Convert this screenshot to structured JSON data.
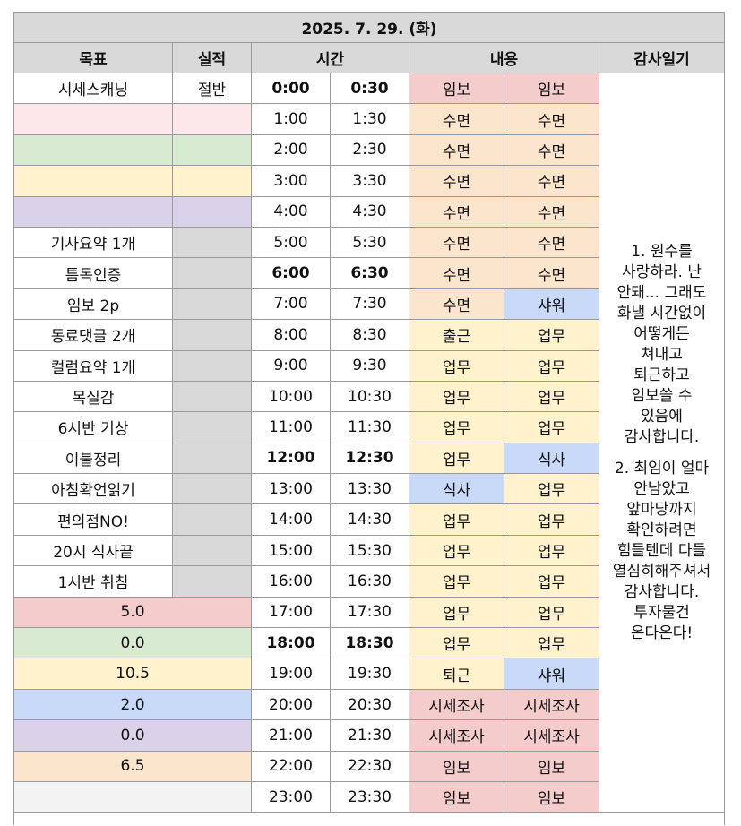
{
  "title": "2025. 7. 29. (화)",
  "headers": {
    "goal": "목표",
    "result": "실적",
    "time": "시간",
    "content": "내용",
    "diary": "감사일기"
  },
  "colors": {
    "red": "#f4cccc",
    "pink": "#fce8ea",
    "green": "#d9ead3",
    "yellow": "#fff2cc",
    "purple": "#d9d2e9",
    "grey": "#d9d9d9",
    "orange": "#fce5cd",
    "blue": "#c9daf8",
    "light": "#f3f3f3",
    "white": "#ffffff",
    "header": "#d9d9d9"
  },
  "rows": [
    {
      "goal": "시세스캐닝",
      "result": "절반",
      "goal_color": "white",
      "result_color": "white",
      "t1": "0:00",
      "t2": "0:30",
      "bold": true,
      "c1": "임보",
      "c1_color": "red",
      "c2": "임보",
      "c2_color": "red"
    },
    {
      "goal": "",
      "result": "",
      "goal_color": "pink",
      "result_color": "pink",
      "t1": "1:00",
      "t2": "1:30",
      "bold": false,
      "c1": "수면",
      "c1_color": "orange",
      "c2": "수면",
      "c2_color": "orange"
    },
    {
      "goal": "",
      "result": "",
      "goal_color": "green",
      "result_color": "green",
      "t1": "2:00",
      "t2": "2:30",
      "bold": false,
      "c1": "수면",
      "c1_color": "orange",
      "c2": "수면",
      "c2_color": "orange"
    },
    {
      "goal": "",
      "result": "",
      "goal_color": "yellow",
      "result_color": "yellow",
      "t1": "3:00",
      "t2": "3:30",
      "bold": false,
      "c1": "수면",
      "c1_color": "orange",
      "c2": "수면",
      "c2_color": "orange"
    },
    {
      "goal": "",
      "result": "",
      "goal_color": "purple",
      "result_color": "purple",
      "t1": "4:00",
      "t2": "4:30",
      "bold": false,
      "c1": "수면",
      "c1_color": "orange",
      "c2": "수면",
      "c2_color": "orange"
    },
    {
      "goal": "기사요약 1개",
      "result": "",
      "goal_color": "white",
      "result_color": "grey",
      "t1": "5:00",
      "t2": "5:30",
      "bold": false,
      "c1": "수면",
      "c1_color": "orange",
      "c2": "수면",
      "c2_color": "orange"
    },
    {
      "goal": "틈독인증",
      "result": "",
      "goal_color": "white",
      "result_color": "grey",
      "t1": "6:00",
      "t2": "6:30",
      "bold": true,
      "c1": "수면",
      "c1_color": "orange",
      "c2": "수면",
      "c2_color": "orange"
    },
    {
      "goal": "임보 2p",
      "result": "",
      "goal_color": "white",
      "result_color": "grey",
      "t1": "7:00",
      "t2": "7:30",
      "bold": false,
      "c1": "수면",
      "c1_color": "orange",
      "c2": "샤워",
      "c2_color": "blue"
    },
    {
      "goal": "동료댓글 2개",
      "result": "",
      "goal_color": "white",
      "result_color": "grey",
      "t1": "8:00",
      "t2": "8:30",
      "bold": false,
      "c1": "출근",
      "c1_color": "yellow",
      "c2": "업무",
      "c2_color": "yellow"
    },
    {
      "goal": "컬럼요약 1개",
      "result": "",
      "goal_color": "white",
      "result_color": "grey",
      "t1": "9:00",
      "t2": "9:30",
      "bold": false,
      "c1": "업무",
      "c1_color": "yellow",
      "c2": "업무",
      "c2_color": "yellow"
    },
    {
      "goal": "목실감",
      "result": "",
      "goal_color": "white",
      "result_color": "grey",
      "t1": "10:00",
      "t2": "10:30",
      "bold": false,
      "c1": "업무",
      "c1_color": "yellow",
      "c2": "업무",
      "c2_color": "yellow"
    },
    {
      "goal": "6시반 기상",
      "result": "",
      "goal_color": "white",
      "result_color": "grey",
      "t1": "11:00",
      "t2": "11:30",
      "bold": false,
      "c1": "업무",
      "c1_color": "yellow",
      "c2": "업무",
      "c2_color": "yellow"
    },
    {
      "goal": "이불정리",
      "result": "",
      "goal_color": "white",
      "result_color": "grey",
      "t1": "12:00",
      "t2": "12:30",
      "bold": true,
      "c1": "업무",
      "c1_color": "yellow",
      "c2": "식사",
      "c2_color": "blue"
    },
    {
      "goal": "아침확언읽기",
      "result": "",
      "goal_color": "white",
      "result_color": "grey",
      "t1": "13:00",
      "t2": "13:30",
      "bold": false,
      "c1": "식사",
      "c1_color": "blue",
      "c2": "업무",
      "c2_color": "yellow"
    },
    {
      "goal": "편의점NO!",
      "result": "",
      "goal_color": "white",
      "result_color": "grey",
      "t1": "14:00",
      "t2": "14:30",
      "bold": false,
      "c1": "업무",
      "c1_color": "yellow",
      "c2": "업무",
      "c2_color": "yellow"
    },
    {
      "goal": "20시 식사끝",
      "result": "",
      "goal_color": "white",
      "result_color": "grey",
      "t1": "15:00",
      "t2": "15:30",
      "bold": false,
      "c1": "업무",
      "c1_color": "yellow",
      "c2": "업무",
      "c2_color": "yellow"
    },
    {
      "goal": "1시반 취침",
      "result": "",
      "goal_color": "white",
      "result_color": "grey",
      "t1": "16:00",
      "t2": "16:30",
      "bold": false,
      "c1": "업무",
      "c1_color": "yellow",
      "c2": "업무",
      "c2_color": "yellow"
    },
    {
      "summary": "5.0",
      "summary_color": "red",
      "t1": "17:00",
      "t2": "17:30",
      "bold": false,
      "c1": "업무",
      "c1_color": "yellow",
      "c2": "업무",
      "c2_color": "yellow"
    },
    {
      "summary": "0.0",
      "summary_color": "green",
      "t1": "18:00",
      "t2": "18:30",
      "bold": true,
      "c1": "업무",
      "c1_color": "yellow",
      "c2": "업무",
      "c2_color": "yellow"
    },
    {
      "summary": "10.5",
      "summary_color": "yellow",
      "t1": "19:00",
      "t2": "19:30",
      "bold": false,
      "c1": "퇴근",
      "c1_color": "yellow",
      "c2": "샤워",
      "c2_color": "blue"
    },
    {
      "summary": "2.0",
      "summary_color": "blue",
      "t1": "20:00",
      "t2": "20:30",
      "bold": false,
      "c1": "시세조사",
      "c1_color": "red",
      "c2": "시세조사",
      "c2_color": "red"
    },
    {
      "summary": "0.0",
      "summary_color": "purple",
      "t1": "21:00",
      "t2": "21:30",
      "bold": false,
      "c1": "시세조사",
      "c1_color": "red",
      "c2": "시세조사",
      "c2_color": "red"
    },
    {
      "summary": "6.5",
      "summary_color": "orange",
      "t1": "22:00",
      "t2": "22:30",
      "bold": false,
      "c1": "임보",
      "c1_color": "red",
      "c2": "임보",
      "c2_color": "red"
    },
    {
      "summary": "",
      "summary_color": "light",
      "t1": "23:00",
      "t2": "23:30",
      "bold": false,
      "c1": "임보",
      "c1_color": "red",
      "c2": "임보",
      "c2_color": "red"
    }
  ],
  "diary": [
    "1. 원수를\n사랑하라. 난\n안돼... 그래도\n화낼 시간없이\n어떻게든\n쳐내고\n퇴근하고\n임보쓸 수\n있음에\n감사합니다.",
    "2. 최임이 얼마\n안남았고\n앞마당까지\n확인하려면\n힘들텐데 다들\n열심히해주셔서\n감사합니다.\n투자물건\n온다온다!"
  ]
}
